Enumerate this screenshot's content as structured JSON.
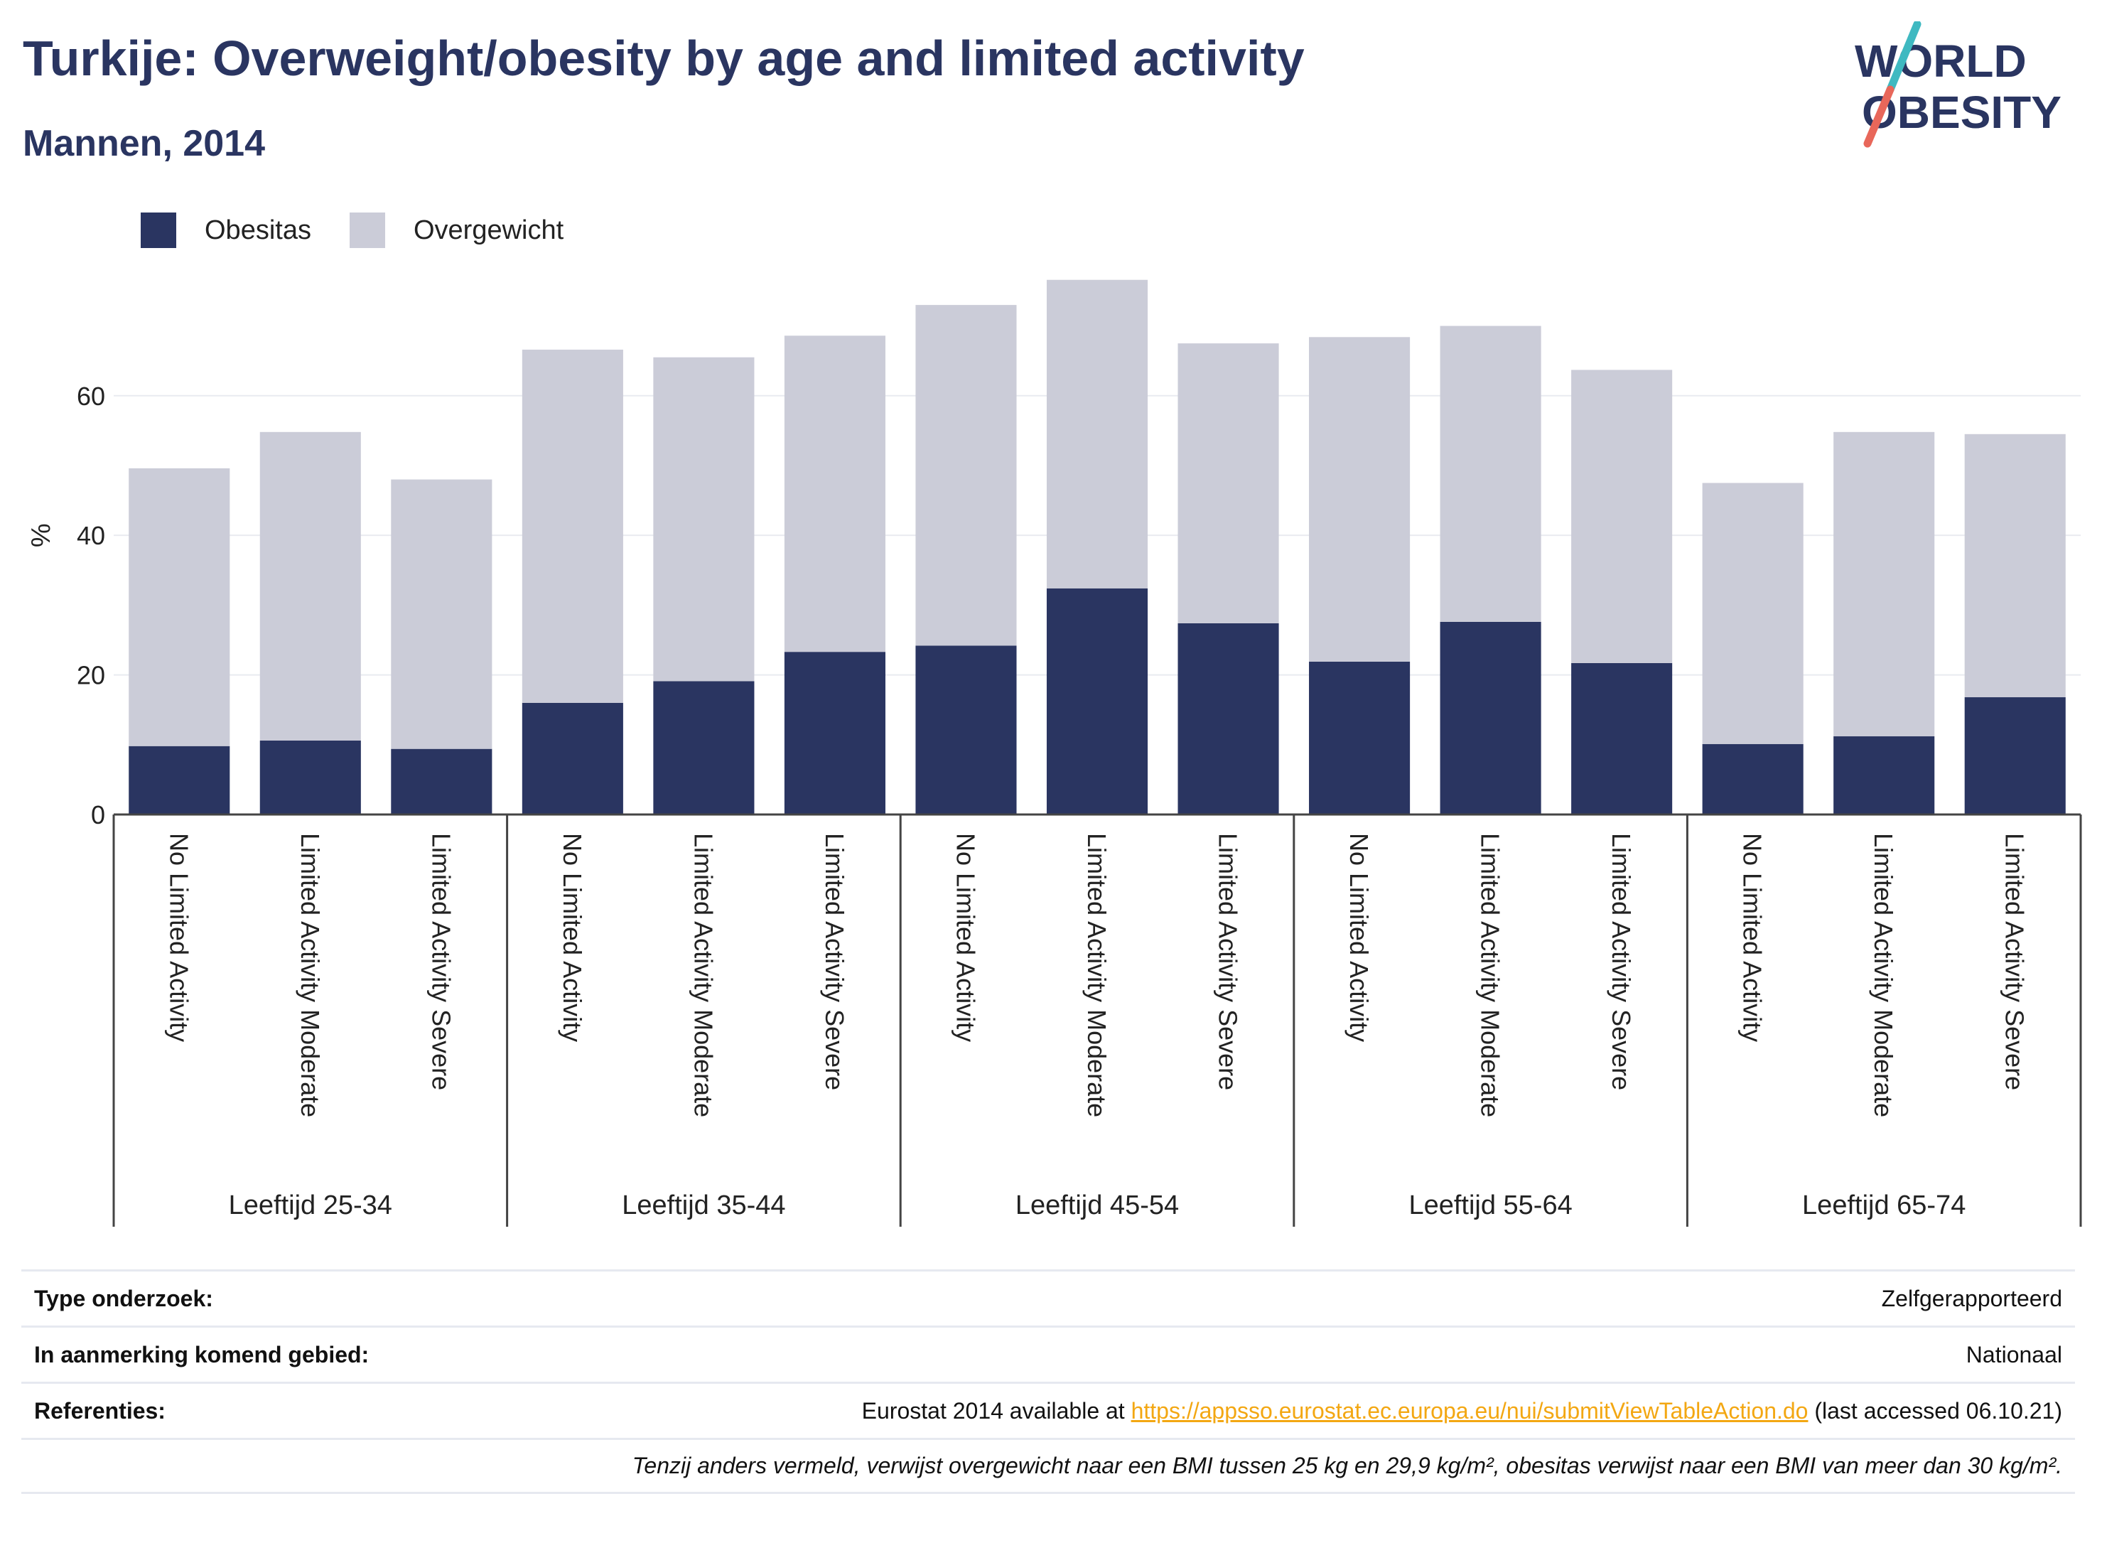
{
  "title": "Turkije: Overweight/obesity by age and limited activity",
  "subtitle": "Mannen, 2014",
  "logo": {
    "line1": "WORLD",
    "line2": "OBESITY",
    "colors": {
      "text": "#2a3561",
      "slash_top": "#3fb9c1",
      "slash_bottom": "#e8675a"
    }
  },
  "legend": [
    {
      "label": "Obesitas",
      "color": "#2a3561"
    },
    {
      "label": "Overgewicht",
      "color": "#cbccd8"
    }
  ],
  "chart_data": {
    "type": "bar",
    "stacked": true,
    "ylabel": "%",
    "ylim": [
      0,
      78
    ],
    "yticks": [
      0,
      20,
      40,
      60
    ],
    "grid": true,
    "legend_position": "top-left",
    "groups": [
      {
        "label": "Leeftijd 25-34",
        "categories": [
          "No Limited Activity",
          "Limited Activity Moderate",
          "Limited Activity Severe"
        ]
      },
      {
        "label": "Leeftijd 35-44",
        "categories": [
          "No Limited Activity",
          "Limited Activity Moderate",
          "Limited Activity Severe"
        ]
      },
      {
        "label": "Leeftijd 45-54",
        "categories": [
          "No Limited Activity",
          "Limited Activity Moderate",
          "Limited Activity Severe"
        ]
      },
      {
        "label": "Leeftijd 55-64",
        "categories": [
          "No Limited Activity",
          "Limited Activity Moderate",
          "Limited Activity Severe"
        ]
      },
      {
        "label": "Leeftijd 65-74",
        "categories": [
          "No Limited Activity",
          "Limited Activity Moderate",
          "Limited Activity Severe"
        ]
      }
    ],
    "series": [
      {
        "name": "Obesitas",
        "color": "#2a3561",
        "values": [
          9.8,
          10.6,
          9.4,
          16.0,
          19.1,
          23.3,
          24.2,
          32.4,
          27.4,
          21.9,
          27.6,
          21.7,
          10.1,
          11.2,
          16.8
        ]
      },
      {
        "name": "Overgewicht",
        "color": "#cbccd8",
        "values": [
          39.8,
          44.2,
          38.6,
          50.6,
          46.4,
          45.3,
          48.8,
          44.2,
          40.1,
          46.5,
          42.4,
          42.0,
          37.4,
          43.6,
          37.7
        ]
      }
    ]
  },
  "info": {
    "type_label": "Type onderzoek:",
    "type_value": "Zelfgerapporteerd",
    "area_label": "In aanmerking komend gebied:",
    "area_value": "Nationaal",
    "ref_label": "Referenties:",
    "ref_prefix": "Eurostat 2014 available at ",
    "ref_link": "https://appsso.eurostat.ec.europa.eu/nui/submitViewTableAction.do",
    "ref_suffix": " (last accessed 06.10.21)",
    "note": "Tenzij anders vermeld, verwijst overgewicht naar een BMI tussen 25 kg en 29,9 kg/m², obesitas verwijst naar een BMI van meer dan 30 kg/m²."
  }
}
